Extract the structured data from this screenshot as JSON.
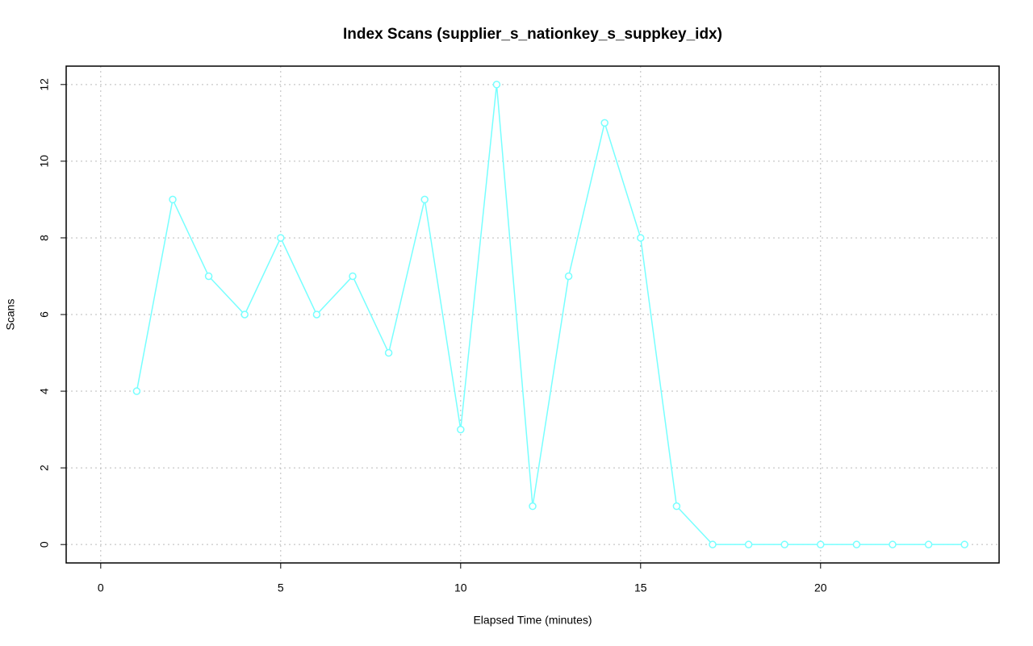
{
  "chart_data": {
    "type": "line",
    "title": "Index Scans (supplier_s_nationkey_s_suppkey_idx)",
    "x_label": "Elapsed Time (minutes)",
    "y_label": "Scans",
    "x": [
      1,
      2,
      3,
      4,
      5,
      6,
      7,
      8,
      9,
      10,
      11,
      12,
      13,
      14,
      15,
      16,
      17,
      18,
      19,
      20,
      21,
      22,
      23,
      24
    ],
    "values": [
      4,
      9,
      7,
      6,
      8,
      6,
      7,
      5,
      9,
      3,
      12,
      1,
      7,
      11,
      8,
      1,
      0,
      0,
      0,
      0,
      0,
      0,
      0,
      0
    ],
    "color": "#77ffff",
    "xlim": [
      -0.96,
      24.96
    ],
    "ylim": [
      -0.48,
      12.48
    ],
    "xticks": [
      0,
      5,
      10,
      15,
      20
    ],
    "yticks": [
      0,
      2,
      4,
      6,
      8,
      10,
      12
    ],
    "grid": true
  }
}
